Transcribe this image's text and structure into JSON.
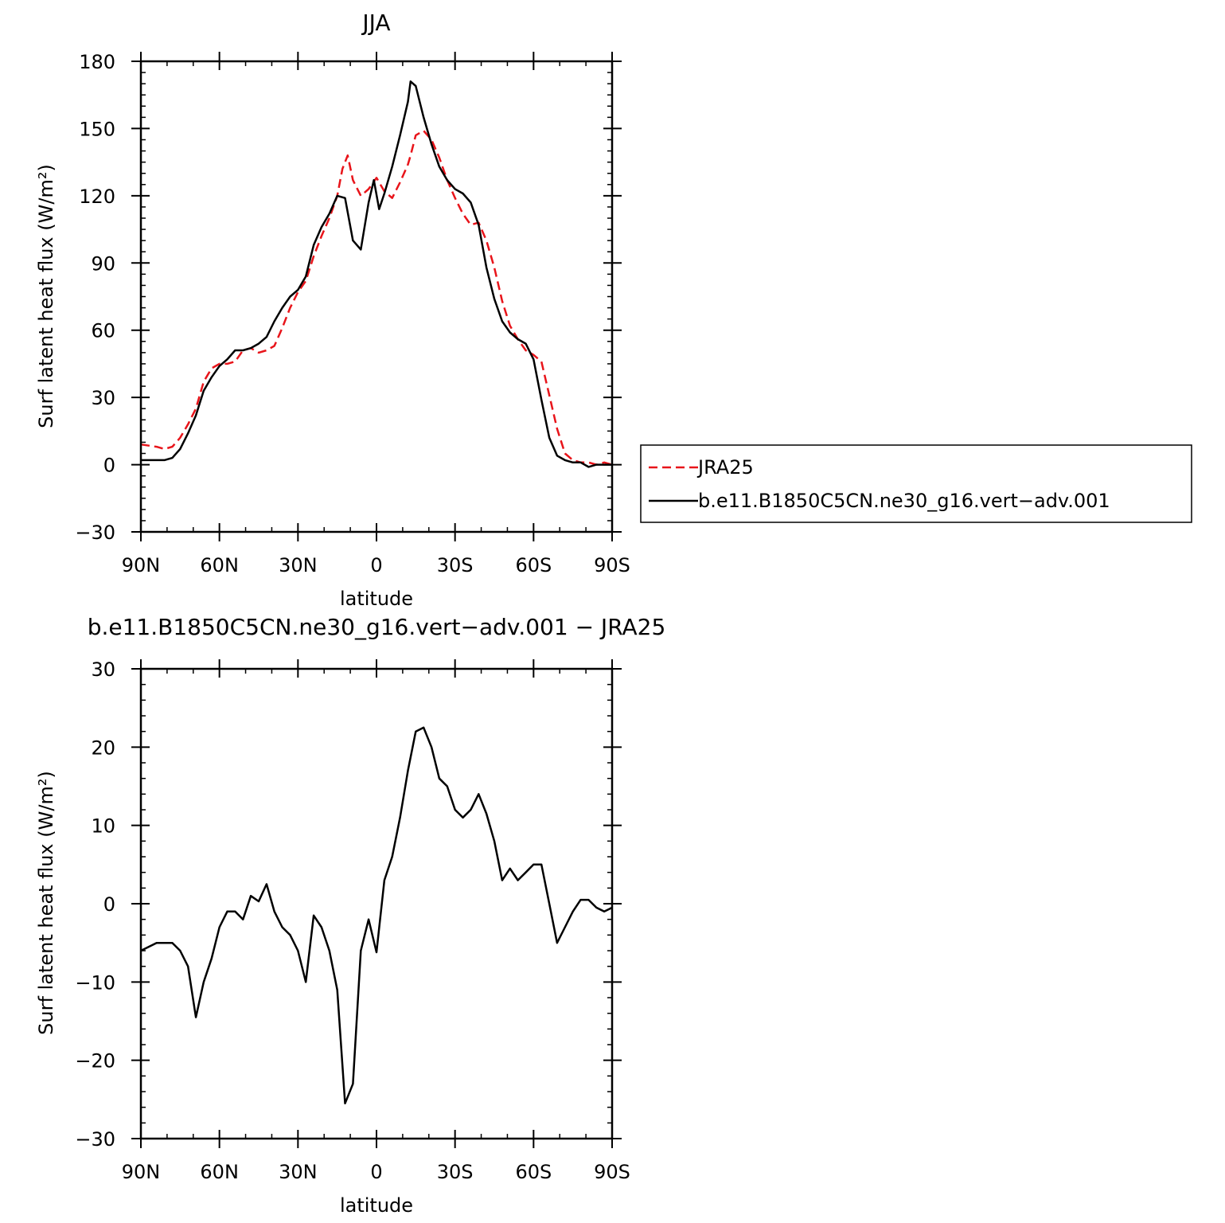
{
  "chart_data": [
    {
      "type": "line",
      "title": "JJA",
      "xlabel": "latitude",
      "ylabel": "Surf latent heat flux (W/m²)",
      "xlim": [
        90,
        -90
      ],
      "ylim": [
        -30,
        180
      ],
      "x_tick_values": [
        90,
        60,
        30,
        0,
        -30,
        -60,
        -90
      ],
      "x_tick_labels": [
        "90N",
        "60N",
        "30N",
        "0",
        "30S",
        "60S",
        "90S"
      ],
      "y_tick_values": [
        -30,
        0,
        30,
        60,
        90,
        120,
        150,
        180
      ],
      "y_tick_labels": [
        "−30",
        "0",
        "30",
        "60",
        "90",
        "120",
        "150",
        "180"
      ],
      "grid": false,
      "legend_position": "right",
      "legend": [
        "JRA25",
        "b.e11.B1850C5CN.ne30_g16.vert−adv.001"
      ],
      "series": [
        {
          "name": "JRA25",
          "color": "#e8141a",
          "dash": "dashed",
          "x": [
            90,
            84,
            81,
            78,
            75,
            72,
            69,
            66,
            63,
            60,
            57,
            54,
            51,
            48,
            45,
            42,
            39,
            36,
            33,
            30,
            27,
            24,
            21,
            18,
            15,
            13,
            11,
            9,
            6,
            3,
            0,
            -3,
            -6,
            -9,
            -12,
            -13,
            -15,
            -18,
            -21,
            -24,
            -27,
            -30,
            -33,
            -36,
            -39,
            -42,
            -45,
            -48,
            -51,
            -54,
            -57,
            -60,
            -63,
            -66,
            -69,
            -72,
            -75,
            -78,
            -81,
            -84,
            -87,
            -90
          ],
          "values": [
            9,
            8,
            7,
            8,
            12,
            18,
            25,
            37,
            43,
            45,
            45,
            46,
            51,
            52,
            50,
            51,
            53,
            61,
            70,
            77,
            82,
            93,
            102,
            110,
            120,
            132,
            138,
            127,
            120,
            123,
            128,
            122,
            119,
            126,
            134,
            138,
            147,
            149,
            145,
            137,
            127,
            119,
            112,
            107,
            108,
            100,
            88,
            73,
            62,
            56,
            51,
            49,
            46,
            31,
            16,
            5,
            2,
            1,
            1,
            0,
            1,
            0
          ]
        },
        {
          "name": "b.e11.B1850C5CN.ne30_g16.vert−adv.001",
          "color": "#000000",
          "dash": "solid",
          "x": [
            90,
            84,
            81,
            78,
            75,
            72,
            69,
            66,
            63,
            60,
            57,
            54,
            51,
            48,
            45,
            42,
            39,
            36,
            33,
            30,
            27,
            24,
            21,
            18,
            15,
            12,
            9,
            6,
            3,
            1,
            -1,
            -3,
            -6,
            -9,
            -12,
            -13,
            -15,
            -18,
            -21,
            -24,
            -27,
            -30,
            -33,
            -36,
            -39,
            -42,
            -45,
            -48,
            -51,
            -54,
            -57,
            -60,
            -63,
            -66,
            -69,
            -72,
            -75,
            -78,
            -81,
            -84,
            -87,
            -90
          ],
          "values": [
            2,
            2,
            2,
            3,
            7,
            14,
            22,
            33,
            39,
            44,
            47,
            51,
            51,
            52,
            54,
            57,
            64,
            70,
            75,
            78,
            84,
            98,
            106,
            112,
            120,
            119,
            100,
            96,
            117,
            127,
            114,
            121,
            133,
            147,
            162,
            171,
            169,
            155,
            143,
            133,
            127,
            123,
            121,
            117,
            107,
            88,
            74,
            64,
            59,
            56,
            54,
            47,
            29,
            12,
            4,
            2,
            1,
            1,
            -1,
            0,
            0,
            0
          ]
        }
      ]
    },
    {
      "type": "line",
      "title": "b.e11.B1850C5CN.ne30_g16.vert−adv.001  −  JRA25",
      "xlabel": "latitude",
      "ylabel": "Surf latent heat flux (W/m²)",
      "xlim": [
        90,
        -90
      ],
      "ylim": [
        -30,
        30
      ],
      "x_tick_values": [
        90,
        60,
        30,
        0,
        -30,
        -60,
        -90
      ],
      "x_tick_labels": [
        "90N",
        "60N",
        "30N",
        "0",
        "30S",
        "60S",
        "90S"
      ],
      "y_tick_values": [
        -30,
        -20,
        -10,
        0,
        10,
        20,
        30
      ],
      "y_tick_labels": [
        "−30",
        "−20",
        "−10",
        "0",
        "10",
        "20",
        "30"
      ],
      "grid": false,
      "series": [
        {
          "color": "#000000",
          "dash": "solid",
          "x": [
            90,
            87,
            84,
            81,
            78,
            75,
            72,
            69,
            66,
            63,
            60,
            57,
            54,
            51,
            48,
            45,
            42,
            39,
            36,
            33,
            30,
            27,
            24,
            21,
            18,
            15,
            12,
            9,
            6,
            3,
            0,
            -3,
            -6,
            -9,
            -12,
            -15,
            -18,
            -21,
            -24,
            -27,
            -30,
            -33,
            -36,
            -39,
            -42,
            -45,
            -48,
            -51,
            -54,
            -57,
            -60,
            -63,
            -66,
            -69,
            -72,
            -75,
            -78,
            -81,
            -84,
            -87,
            -90
          ],
          "values": [
            -6,
            -5.5,
            -5,
            -5,
            -5,
            -6,
            -8,
            -14.5,
            -10,
            -7,
            -3,
            -1,
            -1,
            -2,
            1,
            0.3,
            2.5,
            -1,
            -3,
            -4,
            -6,
            -10,
            -1.5,
            -3,
            -6,
            -11,
            -25.5,
            -23,
            -6,
            -2,
            -6.2,
            3,
            6,
            11,
            17,
            22,
            22.5,
            20,
            16,
            15,
            12,
            11,
            12,
            14,
            11.5,
            8,
            3,
            4.5,
            3,
            4,
            5,
            5,
            0,
            -5,
            -3,
            -1,
            0.5,
            0.5,
            -0.5,
            -1,
            -0.5
          ]
        }
      ]
    }
  ]
}
